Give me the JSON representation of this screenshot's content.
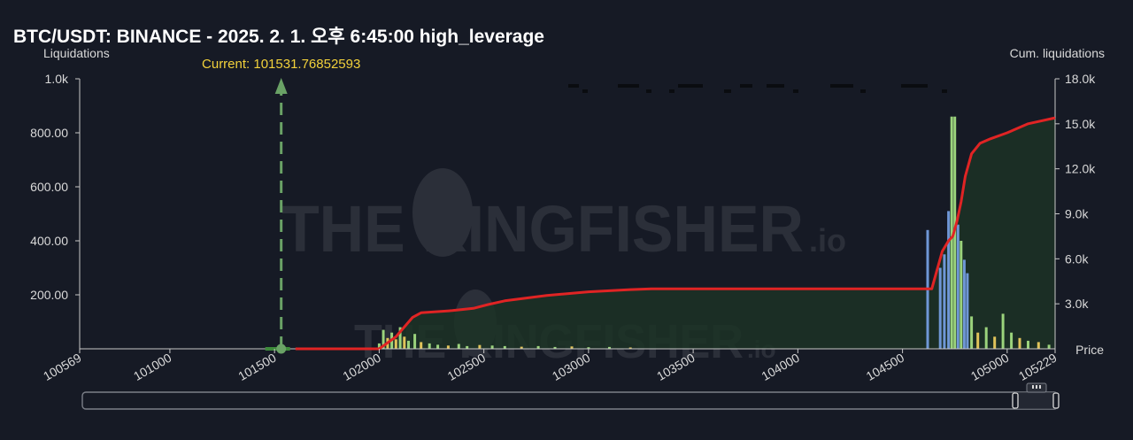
{
  "title": "BTC/USDT: BINANCE - 2025. 2. 1. 오후 6:45:00 high_leverage",
  "colors": {
    "background": "#161a25",
    "cumulative_line": "#e02424",
    "cumulative_fill": "#1c3326",
    "bar_green": "#9bd37c",
    "bar_yellow": "#e0c35a",
    "bar_blue": "#6f97d6",
    "current_marker": "#6aa266",
    "current_label": "#f2d13b"
  },
  "watermark": {
    "text": "THE KINGFISHER",
    "suffix": ".io"
  },
  "chart_data": {
    "type": "bar",
    "title": "BTC/USDT: BINANCE - 2025. 2. 1. 오후 6:45:00 high_leverage",
    "xlabel": "Price",
    "ylabel": "Liquidations",
    "y2label": "Cum. liquidations",
    "xlim": [
      100569,
      105229
    ],
    "ylim": [
      0,
      1000
    ],
    "y2lim": [
      0,
      18000
    ],
    "x_ticks": [
      "100569",
      "101000",
      "101500",
      "102000",
      "102500",
      "103000",
      "103500",
      "104000",
      "104500",
      "105000",
      "105229"
    ],
    "y_ticks": [
      "1.0k",
      "800.00",
      "600.00",
      "400.00",
      "200.00"
    ],
    "y2_ticks": [
      "18.0k",
      "15.0k",
      "12.0k",
      "9.0k",
      "6.0k",
      "3.0k"
    ],
    "current_price": 101531.76852593,
    "current_label": "Current: 101531.76852593",
    "grid": false,
    "series": [
      {
        "name": "Liquidations",
        "bars": [
          {
            "x": 102000,
            "value": 20,
            "color": "green"
          },
          {
            "x": 102020,
            "value": 70,
            "color": "green"
          },
          {
            "x": 102040,
            "value": 40,
            "color": "yellow"
          },
          {
            "x": 102060,
            "value": 60,
            "color": "green"
          },
          {
            "x": 102080,
            "value": 35,
            "color": "yellow"
          },
          {
            "x": 102100,
            "value": 80,
            "color": "green"
          },
          {
            "x": 102120,
            "value": 45,
            "color": "yellow"
          },
          {
            "x": 102140,
            "value": 30,
            "color": "green"
          },
          {
            "x": 102170,
            "value": 55,
            "color": "green"
          },
          {
            "x": 102200,
            "value": 25,
            "color": "yellow"
          },
          {
            "x": 102240,
            "value": 20,
            "color": "green"
          },
          {
            "x": 102280,
            "value": 15,
            "color": "green"
          },
          {
            "x": 102330,
            "value": 12,
            "color": "yellow"
          },
          {
            "x": 102380,
            "value": 18,
            "color": "green"
          },
          {
            "x": 102420,
            "value": 10,
            "color": "green"
          },
          {
            "x": 102480,
            "value": 14,
            "color": "yellow"
          },
          {
            "x": 102540,
            "value": 12,
            "color": "green"
          },
          {
            "x": 102600,
            "value": 10,
            "color": "green"
          },
          {
            "x": 102680,
            "value": 8,
            "color": "yellow"
          },
          {
            "x": 102760,
            "value": 10,
            "color": "green"
          },
          {
            "x": 102840,
            "value": 7,
            "color": "green"
          },
          {
            "x": 102920,
            "value": 9,
            "color": "yellow"
          },
          {
            "x": 103000,
            "value": 6,
            "color": "green"
          },
          {
            "x": 103100,
            "value": 7,
            "color": "green"
          },
          {
            "x": 103200,
            "value": 5,
            "color": "yellow"
          },
          {
            "x": 104620,
            "value": 440,
            "color": "blue"
          },
          {
            "x": 104680,
            "value": 300,
            "color": "blue"
          },
          {
            "x": 104700,
            "value": 350,
            "color": "blue"
          },
          {
            "x": 104720,
            "value": 510,
            "color": "blue"
          },
          {
            "x": 104735,
            "value": 860,
            "color": "green"
          },
          {
            "x": 104750,
            "value": 860,
            "color": "green"
          },
          {
            "x": 104765,
            "value": 460,
            "color": "blue"
          },
          {
            "x": 104780,
            "value": 400,
            "color": "green"
          },
          {
            "x": 104795,
            "value": 330,
            "color": "blue"
          },
          {
            "x": 104810,
            "value": 280,
            "color": "blue"
          },
          {
            "x": 104830,
            "value": 120,
            "color": "green"
          },
          {
            "x": 104860,
            "value": 60,
            "color": "yellow"
          },
          {
            "x": 104900,
            "value": 80,
            "color": "green"
          },
          {
            "x": 104940,
            "value": 45,
            "color": "yellow"
          },
          {
            "x": 104980,
            "value": 130,
            "color": "green"
          },
          {
            "x": 105020,
            "value": 60,
            "color": "green"
          },
          {
            "x": 105060,
            "value": 40,
            "color": "yellow"
          },
          {
            "x": 105100,
            "value": 30,
            "color": "green"
          },
          {
            "x": 105150,
            "value": 25,
            "color": "yellow"
          },
          {
            "x": 105200,
            "value": 15,
            "color": "green"
          }
        ]
      },
      {
        "name": "Cum. liquidations",
        "points": [
          [
            101600,
            0
          ],
          [
            102000,
            0
          ],
          [
            102080,
            800
          ],
          [
            102160,
            2100
          ],
          [
            102200,
            2400
          ],
          [
            102350,
            2550
          ],
          [
            102450,
            2700
          ],
          [
            102520,
            2950
          ],
          [
            102600,
            3200
          ],
          [
            102800,
            3550
          ],
          [
            103000,
            3800
          ],
          [
            103200,
            3950
          ],
          [
            103300,
            4000
          ],
          [
            104000,
            4000
          ],
          [
            104600,
            4000
          ],
          [
            104640,
            4000
          ],
          [
            104660,
            5000
          ],
          [
            104690,
            6500
          ],
          [
            104720,
            7200
          ],
          [
            104740,
            7500
          ],
          [
            104760,
            8500
          ],
          [
            104780,
            9800
          ],
          [
            104800,
            11500
          ],
          [
            104830,
            13000
          ],
          [
            104870,
            13700
          ],
          [
            104920,
            14000
          ],
          [
            105000,
            14400
          ],
          [
            105100,
            15000
          ],
          [
            105229,
            15400
          ]
        ]
      }
    ]
  }
}
